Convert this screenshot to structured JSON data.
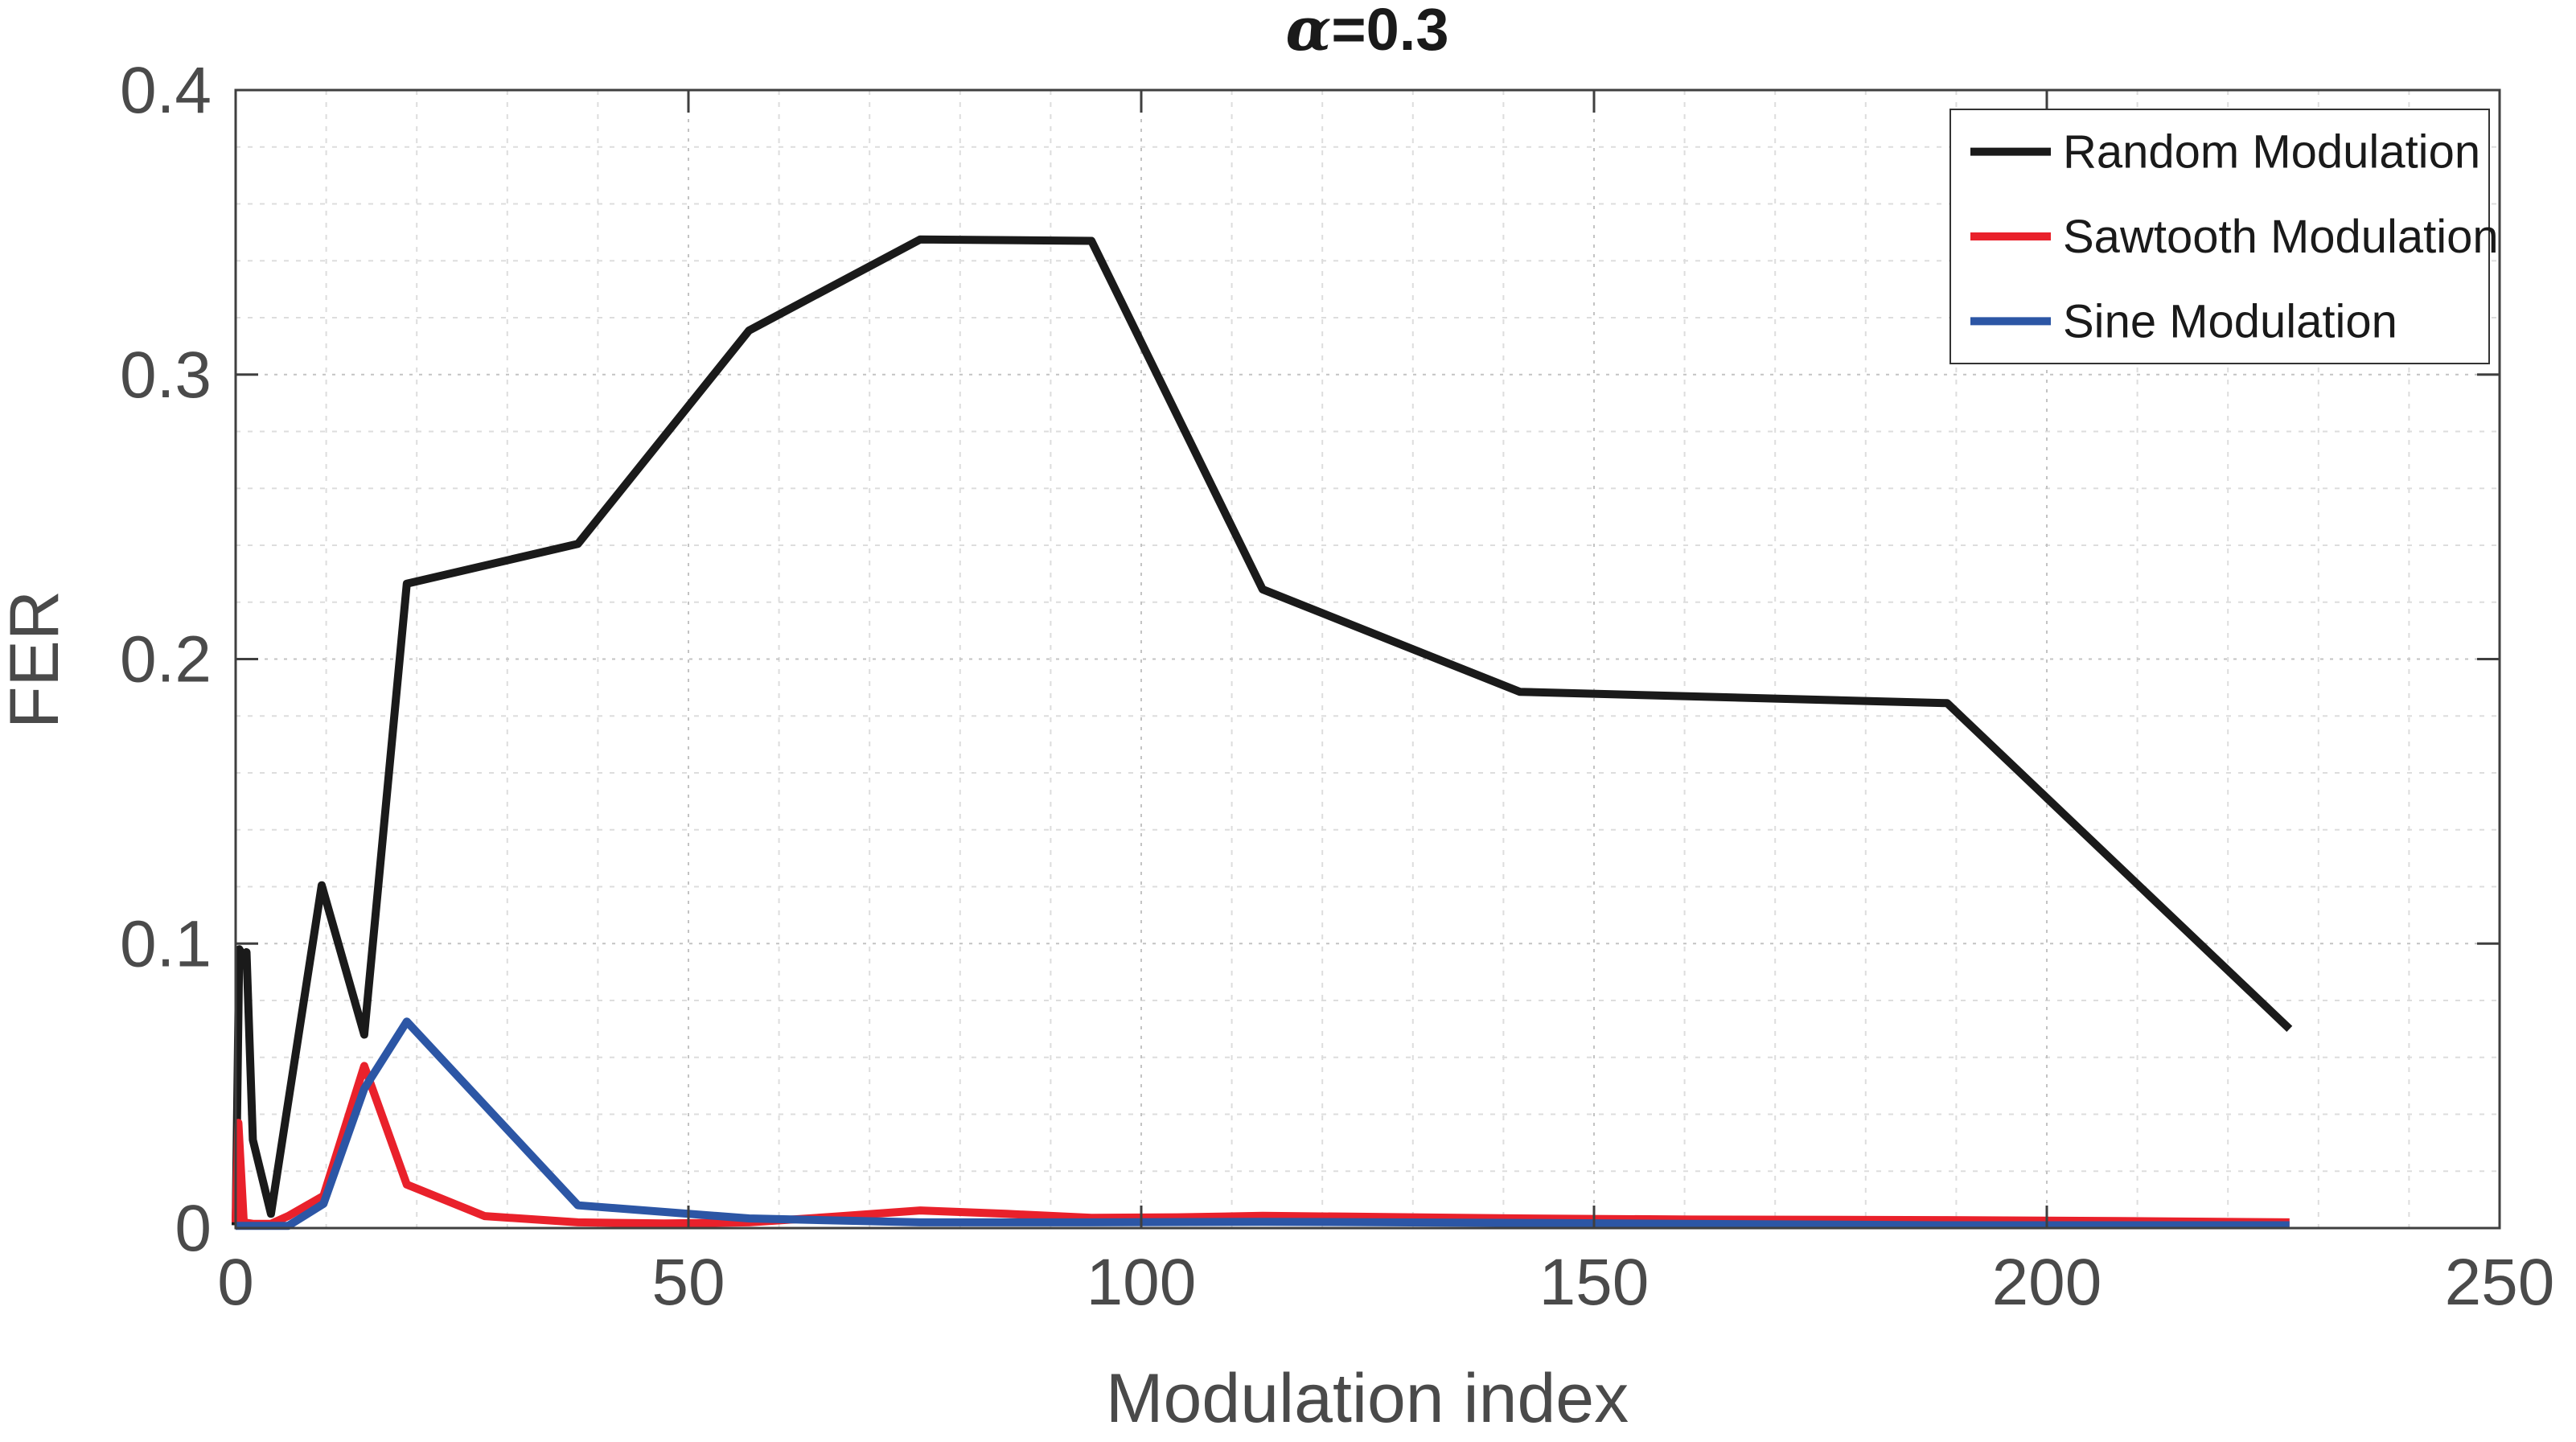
{
  "chart_data": {
    "type": "line",
    "title": "α=0.3",
    "title_alpha": "α",
    "title_rest": "=0.3",
    "xlabel": "Modulation index",
    "ylabel": "FER",
    "xlim": [
      0,
      250
    ],
    "ylim": [
      0,
      0.4
    ],
    "x_ticks": [
      0,
      50,
      100,
      150,
      200,
      250
    ],
    "x_tick_labels": [
      "0",
      "50",
      "100",
      "150",
      "200",
      "250"
    ],
    "y_ticks": [
      0,
      0.1,
      0.2,
      0.3,
      0.4
    ],
    "y_tick_labels": [
      "0",
      "0.1",
      "0.2",
      "0.3",
      "0.4"
    ],
    "x_minor_step": 10,
    "y_minor_step": 0.02,
    "grid": {
      "major_on": true,
      "minor_on": true,
      "major_color": "#c3c3c3",
      "minor_color": "#dddddd"
    },
    "axis_color": "#3f3f3f",
    "tick_label_color": "#4a4a4a",
    "legend": {
      "position": "top-right",
      "border_color": "#333333",
      "background": "#ffffff",
      "entries": [
        "Random Modulation",
        "Sawtooth Modulation",
        "Sine Modulation"
      ]
    },
    "series": [
      {
        "name": "Random Modulation",
        "color": "#1a1a1a",
        "x": [
          0,
          0.4,
          0.8,
          1.2,
          1.9,
          3.9,
          9.5,
          14.2,
          18.9,
          37.8,
          56.7,
          75.6,
          94.5,
          113.4,
          141.8,
          189.0,
          226.8
        ],
        "y": [
          0.001,
          0.098,
          0.096,
          0.097,
          0.031,
          0.005,
          0.1205,
          0.068,
          0.2265,
          0.2405,
          0.3155,
          0.3475,
          0.347,
          0.2245,
          0.1885,
          0.1845,
          0.07
        ]
      },
      {
        "name": "Sawtooth Modulation",
        "color": "#e9212b",
        "x": [
          0,
          0.3,
          0.9,
          1.9,
          3.9,
          5.8,
          9.7,
          14.2,
          18.9,
          27.5,
          37.8,
          47.3,
          56.7,
          66.2,
          75.6,
          85.1,
          94.5,
          104.0,
          113.4,
          122.9,
          141.8,
          160.7,
          189.0,
          207.9,
          226.8
        ],
        "y": [
          0.002,
          0.037,
          0.002,
          0.0015,
          0.0015,
          0.0042,
          0.0113,
          0.057,
          0.0153,
          0.0042,
          0.002,
          0.0016,
          0.002,
          0.004,
          0.0062,
          0.005,
          0.0036,
          0.0038,
          0.0043,
          0.004,
          0.0034,
          0.003,
          0.0028,
          0.0025,
          0.002
        ]
      },
      {
        "name": "Sine Modulation",
        "color": "#2c56a5",
        "x": [
          0,
          5.8,
          9.7,
          14.2,
          18.9,
          37.8,
          56.7,
          75.6,
          94.5,
          113.4,
          141.8,
          189.0,
          226.8
        ],
        "y": [
          0.0008,
          0.0008,
          0.0085,
          0.049,
          0.0726,
          0.008,
          0.0034,
          0.002,
          0.002,
          0.0022,
          0.0018,
          0.001,
          0.001
        ]
      }
    ]
  }
}
